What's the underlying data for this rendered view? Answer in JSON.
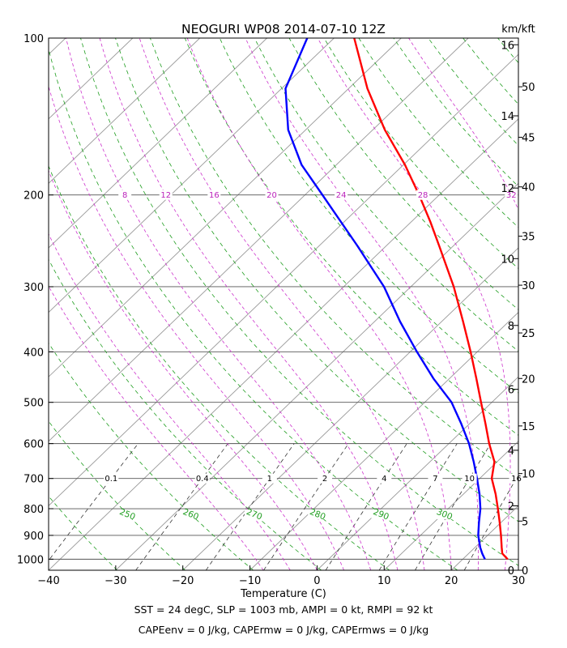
{
  "chart_data": {
    "type": "line",
    "title": "NEOGURI WP08 2014-07-10 12Z",
    "xlabel": "Temperature (C)",
    "right_axis_label": "km/kft",
    "xlim": [
      -40,
      30
    ],
    "ylim_hPa": [
      1050,
      100
    ],
    "y_scale": "log",
    "x_ticks": [
      "−40",
      "−30",
      "−20",
      "−10",
      "0",
      "10",
      "20",
      "30"
    ],
    "y_ticks": [
      {
        "p": 100,
        "label": "100"
      },
      {
        "p": 200,
        "label": "200"
      },
      {
        "p": 300,
        "label": "300"
      },
      {
        "p": 400,
        "label": "400"
      },
      {
        "p": 500,
        "label": "500"
      },
      {
        "p": 600,
        "label": "600"
      },
      {
        "p": 700,
        "label": "700"
      },
      {
        "p": 800,
        "label": "800"
      },
      {
        "p": 900,
        "label": "900"
      },
      {
        "p": 1000,
        "label": "1000"
      }
    ],
    "km_ticks": [
      {
        "label": "0",
        "p": 1050
      },
      {
        "label": "2",
        "p": 790
      },
      {
        "label": "4",
        "p": 618
      },
      {
        "label": "6",
        "p": 472
      },
      {
        "label": "8",
        "p": 356
      },
      {
        "label": "10",
        "p": 265
      },
      {
        "label": "12",
        "p": 194
      },
      {
        "label": "14",
        "p": 141
      },
      {
        "label": "16",
        "p": 103
      }
    ],
    "kft_ticks": [
      {
        "label": "0",
        "p": 1050
      },
      {
        "label": "5",
        "p": 845
      },
      {
        "label": "10",
        "p": 685
      },
      {
        "label": "15",
        "p": 555
      },
      {
        "label": "20",
        "p": 450
      },
      {
        "label": "25",
        "p": 368
      },
      {
        "label": "30",
        "p": 298
      },
      {
        "label": "35",
        "p": 240
      },
      {
        "label": "40",
        "p": 193
      },
      {
        "label": "45",
        "p": 155
      },
      {
        "label": "50",
        "p": 124
      }
    ],
    "mixing_ratio_labels": {
      "p": 700,
      "values": [
        {
          "w": 0.1,
          "label": "0.1"
        },
        {
          "w": 0.4,
          "label": "0.4"
        },
        {
          "w": 1,
          "label": "1"
        },
        {
          "w": 2,
          "label": "2"
        },
        {
          "w": 4,
          "label": "4"
        },
        {
          "w": 7,
          "label": "7"
        },
        {
          "w": 10,
          "label": "10"
        },
        {
          "w": 16,
          "label": "16"
        }
      ]
    },
    "dry_adiabat_labels": {
      "p": 820,
      "values": [
        {
          "theta_K": 250,
          "label": "250"
        },
        {
          "theta_K": 260,
          "label": "260"
        },
        {
          "theta_K": 270,
          "label": "270"
        },
        {
          "theta_K": 280,
          "label": "280"
        },
        {
          "theta_K": 290,
          "label": "290"
        },
        {
          "theta_K": 300,
          "label": "300"
        }
      ]
    },
    "moist_adiabat_labels": {
      "p": 200,
      "values": [
        {
          "t0": 8,
          "label": "8"
        },
        {
          "t0": 12,
          "label": "12"
        },
        {
          "t0": 16,
          "label": "16"
        },
        {
          "t0": 20,
          "label": "20"
        },
        {
          "t0": 24,
          "label": "24"
        },
        {
          "t0": 28,
          "label": "28"
        },
        {
          "t0": 32,
          "label": "32"
        }
      ]
    },
    "series": [
      {
        "name": "",
        "color": "#ff0000",
        "points": [
          {
            "p": 1000,
            "t": 26.7
          },
          {
            "p": 975,
            "t": 25.0
          },
          {
            "p": 950,
            "t": 24.0
          },
          {
            "p": 900,
            "t": 22.0
          },
          {
            "p": 850,
            "t": 19.8
          },
          {
            "p": 800,
            "t": 17.4
          },
          {
            "p": 750,
            "t": 14.8
          },
          {
            "p": 700,
            "t": 11.8
          },
          {
            "p": 650,
            "t": 9.6
          },
          {
            "p": 600,
            "t": 6.0
          },
          {
            "p": 550,
            "t": 2.4
          },
          {
            "p": 500,
            "t": -1.6
          },
          {
            "p": 450,
            "t": -6.0
          },
          {
            "p": 400,
            "t": -11.0
          },
          {
            "p": 350,
            "t": -16.8
          },
          {
            "p": 300,
            "t": -23.6
          },
          {
            "p": 250,
            "t": -32.2
          },
          {
            "p": 225,
            "t": -37.2
          },
          {
            "p": 200,
            "t": -43.0
          },
          {
            "p": 175,
            "t": -49.8
          },
          {
            "p": 150,
            "t": -58.2
          },
          {
            "p": 125,
            "t": -67.2
          },
          {
            "p": 100,
            "t": -77.0
          }
        ]
      },
      {
        "name": "",
        "color": "#0000ff",
        "points": [
          {
            "p": 1000,
            "t": 23.3
          },
          {
            "p": 975,
            "t": 22.0
          },
          {
            "p": 950,
            "t": 20.8
          },
          {
            "p": 900,
            "t": 18.6
          },
          {
            "p": 850,
            "t": 16.7
          },
          {
            "p": 800,
            "t": 14.8
          },
          {
            "p": 750,
            "t": 12.4
          },
          {
            "p": 700,
            "t": 9.6
          },
          {
            "p": 650,
            "t": 6.5
          },
          {
            "p": 600,
            "t": 3.0
          },
          {
            "p": 550,
            "t": -1.2
          },
          {
            "p": 500,
            "t": -6.0
          },
          {
            "p": 450,
            "t": -12.4
          },
          {
            "p": 400,
            "t": -19.0
          },
          {
            "p": 350,
            "t": -26.2
          },
          {
            "p": 300,
            "t": -34.0
          },
          {
            "p": 250,
            "t": -44.4
          },
          {
            "p": 200,
            "t": -57.4
          },
          {
            "p": 175,
            "t": -65.2
          },
          {
            "p": 150,
            "t": -72.6
          },
          {
            "p": 125,
            "t": -79.4
          },
          {
            "p": 100,
            "t": -84.0
          }
        ]
      }
    ]
  },
  "footer": {
    "line1": "SST = 24 degC, SLP = 1003 mb, AMPI = 0 kt, RMPI = 92 kt",
    "line2": "CAPEenv = 0 J/kg, CAPErmw = 0 J/kg, CAPErmws = 0 J/kg"
  }
}
